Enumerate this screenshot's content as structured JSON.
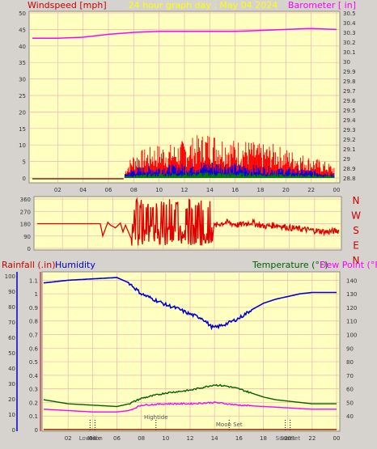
{
  "header": {
    "left_title": "Windspeed [mph]",
    "center_title": "24 hour graph day : May 04 2024",
    "right_title": "Barometer [ in]"
  },
  "middle_panel": {
    "compass": [
      "N",
      "W",
      "S",
      "E",
      "N"
    ]
  },
  "bottom_header": {
    "rainfall": "Rainfall (.in)",
    "humidity": "Humidity",
    "temperature": "Temperature (°F)",
    "dewpoint": "Dew Point (°F)"
  },
  "colors": {
    "background": "#d6d3ce",
    "plot_bg": "#ffffc0",
    "grid": "#f0b4b4",
    "wind_speed": "#ff0000",
    "wind_avg": "#0000e0",
    "wind_lull": "#008000",
    "barometer": "#ff00ff",
    "direction": "#e00000",
    "humidity": "#0000dd",
    "temperature": "#006000",
    "dewpoint": "#ff00ff",
    "rain": "#8b2000",
    "title_red": "#cc0000",
    "title_yellow": "#ffff00",
    "title_magenta": "#ff00ff",
    "title_blue": "#0000cc",
    "title_green": "#006000"
  },
  "chart_data": [
    {
      "type": "line",
      "name": "wind_and_barometer",
      "x_ticks": [
        "02",
        "04",
        "06",
        "08",
        "10",
        "12",
        "14",
        "16",
        "18",
        "20",
        "22",
        "00"
      ],
      "ylabel_left": "Windspeed [mph]",
      "ylabel_right": "Barometer [ in]",
      "y_left_ticks": [
        "0",
        "5",
        "10",
        "15",
        "20",
        "25",
        "30",
        "35",
        "40",
        "45",
        "50"
      ],
      "y_right_ticks": [
        "28.8",
        "28.9",
        "29",
        "29.1",
        "29.2",
        "29.3",
        "29.4",
        "29.5",
        "29.6",
        "29.7",
        "29.8",
        "29.9",
        "30",
        "30.1",
        "30.2",
        "30.3",
        "30.4",
        "30.5"
      ],
      "ylim_left": [
        0,
        50
      ],
      "ylim_right": [
        28.8,
        30.5
      ],
      "xlim": [
        0,
        24
      ],
      "series": [
        {
          "key": "barometer",
          "axis": "right",
          "x": [
            0,
            2,
            4,
            6,
            7,
            8,
            10,
            12,
            14,
            16,
            18,
            20,
            22,
            24
          ],
          "y": [
            30.24,
            30.24,
            30.25,
            30.28,
            30.29,
            30.3,
            30.31,
            30.31,
            30.31,
            30.31,
            30.32,
            30.33,
            30.34,
            30.33
          ]
        },
        {
          "key": "wind_gust_band",
          "axis": "left",
          "x": [
            0,
            7.2,
            7.4,
            8,
            9,
            10,
            11,
            12,
            13,
            14,
            15,
            16,
            17,
            18,
            19,
            20,
            21,
            22,
            23,
            23.8
          ],
          "y": [
            0,
            0,
            3,
            6,
            7,
            8,
            8,
            9,
            10,
            11,
            10,
            9,
            9,
            8,
            8,
            7,
            6,
            5,
            4,
            3
          ]
        },
        {
          "key": "wind_avg_band",
          "axis": "left",
          "x": [
            0,
            7.2,
            7.4,
            8,
            10,
            12,
            14,
            16,
            18,
            20,
            22,
            23.8
          ],
          "y": [
            0,
            0,
            1.5,
            2.5,
            3,
            3.5,
            4,
            3.5,
            3,
            2.5,
            2,
            1.5
          ]
        },
        {
          "key": "wind_lull_band",
          "axis": "left",
          "x": [
            0,
            7.2,
            7.4,
            10,
            14,
            18,
            22,
            23.8
          ],
          "y": [
            0,
            0,
            0.6,
            1.2,
            1.5,
            1.2,
            0.8,
            0.5
          ]
        }
      ]
    },
    {
      "type": "line",
      "name": "wind_direction",
      "x_ticks": [],
      "y_ticks": [
        "360",
        "270",
        "180",
        "90",
        "0"
      ],
      "ylim": [
        0,
        360
      ],
      "xlim": [
        0,
        24
      ],
      "series": [
        {
          "key": "direction",
          "x": [
            0,
            5,
            5.2,
            5.6,
            5.8,
            6.2,
            6.6,
            6.8,
            7,
            7.6,
            8,
            8.4,
            9,
            10,
            11,
            12,
            12.5,
            13,
            13.8,
            14,
            14.5,
            15,
            16,
            17,
            18,
            19,
            20,
            21,
            22,
            23,
            24
          ],
          "y": [
            180,
            180,
            90,
            190,
            170,
            150,
            185,
            120,
            170,
            40,
            140,
            60,
            100,
            110,
            160,
            130,
            100,
            150,
            70,
            160,
            180,
            190,
            170,
            190,
            160,
            170,
            150,
            140,
            130,
            120,
            130
          ]
        }
      ]
    },
    {
      "type": "line",
      "name": "rain_humidity_temperature",
      "x_ticks": [
        "02",
        "04",
        "06",
        "08",
        "10",
        "12",
        "14",
        "16",
        "18",
        "20",
        "22",
        "00"
      ],
      "y_left_ticks": [
        "0",
        "0.1",
        "0.2",
        "0.3",
        "0.4",
        "0.5",
        "0.6",
        "0.7",
        "0.8",
        "0.9",
        "1",
        "1.1"
      ],
      "y_hum_ticks": [
        "0",
        "10",
        "20",
        "30",
        "40",
        "50",
        "60",
        "70",
        "80",
        "90",
        "100"
      ],
      "y_right_ticks": [
        "40",
        "50",
        "60",
        "70",
        "80",
        "90",
        "100",
        "110",
        "120",
        "130",
        "140"
      ],
      "ylim_left": [
        0,
        1.15
      ],
      "ylim_right": [
        30,
        145
      ],
      "xlim": [
        0,
        24
      ],
      "markers": [
        {
          "label": "Lowtide",
          "x": 3.8
        },
        {
          "label": "Moon",
          "x": 4.2
        },
        {
          "label": "Hightide",
          "x": 9.2
        },
        {
          "label": "Moon Set",
          "x": 15.2
        },
        {
          "label": "Sunset",
          "x": 19.8
        },
        {
          "label": "SunSet",
          "x": 20.2
        }
      ],
      "series": [
        {
          "key": "humidity",
          "axis": "right",
          "x": [
            0,
            2,
            4,
            6,
            7,
            8,
            9,
            10,
            11,
            12,
            13,
            13.7,
            14,
            15,
            16,
            17,
            18,
            19,
            20,
            21,
            22,
            23,
            24
          ],
          "y": [
            138,
            140,
            141,
            142,
            138,
            130,
            126,
            122,
            119,
            115,
            112,
            106,
            105,
            108,
            112,
            118,
            123,
            126,
            128,
            130,
            131,
            131,
            131
          ]
        },
        {
          "key": "temperature",
          "axis": "right",
          "x": [
            0,
            2,
            4,
            6,
            7,
            8,
            10,
            12,
            13,
            14,
            15,
            16,
            17,
            18,
            19,
            20,
            21,
            22,
            23,
            24
          ],
          "y": [
            52,
            49,
            48,
            47,
            49,
            53,
            57,
            59,
            61,
            63,
            62,
            60,
            57,
            54,
            52,
            51,
            50,
            49,
            49,
            49
          ]
        },
        {
          "key": "dewpoint",
          "axis": "right",
          "x": [
            0,
            2,
            4,
            6,
            7,
            8,
            10,
            12,
            14,
            16,
            18,
            20,
            22,
            24
          ],
          "y": [
            45,
            44,
            43,
            43,
            44,
            48,
            49,
            49,
            50,
            48,
            47,
            46,
            45,
            45
          ]
        },
        {
          "key": "rain",
          "axis": "left",
          "x": [
            0,
            24
          ],
          "y": [
            0,
            0
          ]
        }
      ]
    }
  ]
}
